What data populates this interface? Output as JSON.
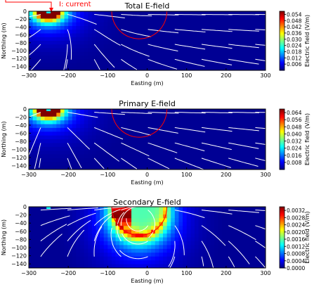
{
  "annotation": "I: current",
  "colors": {
    "jet": [
      "#00007f",
      "#0000ff",
      "#007fff",
      "#00ffff",
      "#7fff7f",
      "#ffff00",
      "#ff7f00",
      "#ff0000",
      "#7f0000"
    ],
    "stream": "#ffffff",
    "sphere": "#ff0000",
    "annotation": "#ff0000"
  },
  "chart_data": [
    {
      "type": "heatmap",
      "title": "Total E-field",
      "xlabel": "Easting (m)",
      "ylabel": "Northing (m)",
      "xlim": [
        -300,
        300
      ],
      "ylim": [
        -150,
        0
      ],
      "xticks": [
        "−300",
        "−200",
        "−100",
        "0",
        "100",
        "200",
        "300"
      ],
      "yticks": [
        "0",
        "−20",
        "−40",
        "−60",
        "−80",
        "−100",
        "−120",
        "−140"
      ],
      "colorbar": {
        "label": "Electric field (V/m)",
        "ticks": [
          "0.054",
          "0.048",
          "0.042",
          "0.036",
          "0.030",
          "0.024",
          "0.018",
          "0.012",
          "0.006"
        ],
        "range": [
          0,
          0.057
        ]
      },
      "source": {
        "x": -250,
        "y": 0
      },
      "sphere": {
        "center_x": -20,
        "center_y": 0,
        "radius": 70
      },
      "field_type": "total"
    },
    {
      "type": "heatmap",
      "title": "Primary E-field",
      "xlabel": "Easting (m)",
      "ylabel": "Northing (m)",
      "xlim": [
        -300,
        300
      ],
      "ylim": [
        -150,
        0
      ],
      "xticks": [
        "−300",
        "−200",
        "−100",
        "0",
        "100",
        "200",
        "300"
      ],
      "yticks": [
        "0",
        "−20",
        "−40",
        "−60",
        "−80",
        "−100",
        "−120",
        "−140"
      ],
      "colorbar": {
        "label": "Electric field (V/m)",
        "ticks": [
          "0.064",
          "0.056",
          "0.048",
          "0.040",
          "0.032",
          "0.024",
          "0.016",
          "0.008"
        ],
        "range": [
          0,
          0.068
        ]
      },
      "source": {
        "x": -250,
        "y": 0
      },
      "sphere": {
        "center_x": -20,
        "center_y": 0,
        "radius": 70
      },
      "field_type": "primary"
    },
    {
      "type": "heatmap",
      "title": "Secondary E-field",
      "xlabel": "Easting (m)",
      "ylabel": "Northing (m)",
      "xlim": [
        -300,
        300
      ],
      "ylim": [
        -150,
        0
      ],
      "xticks": [
        "−300",
        "−200",
        "−100",
        "0",
        "100",
        "200",
        "300"
      ],
      "yticks": [
        "0",
        "−20",
        "−40",
        "−60",
        "−80",
        "−100",
        "−120",
        "−140"
      ],
      "colorbar": {
        "label": "Electric field (V/m)",
        "ticks": [
          "0.0032",
          "0.0028",
          "0.0024",
          "0.0020",
          "0.0016",
          "0.0012",
          "0.0008",
          "0.0004",
          "0.0000"
        ],
        "range": [
          0,
          0.0034
        ]
      },
      "source": {
        "x": -250,
        "y": 0
      },
      "sphere": {
        "center_x": -20,
        "center_y": 0,
        "radius": 70
      },
      "field_type": "secondary"
    }
  ]
}
